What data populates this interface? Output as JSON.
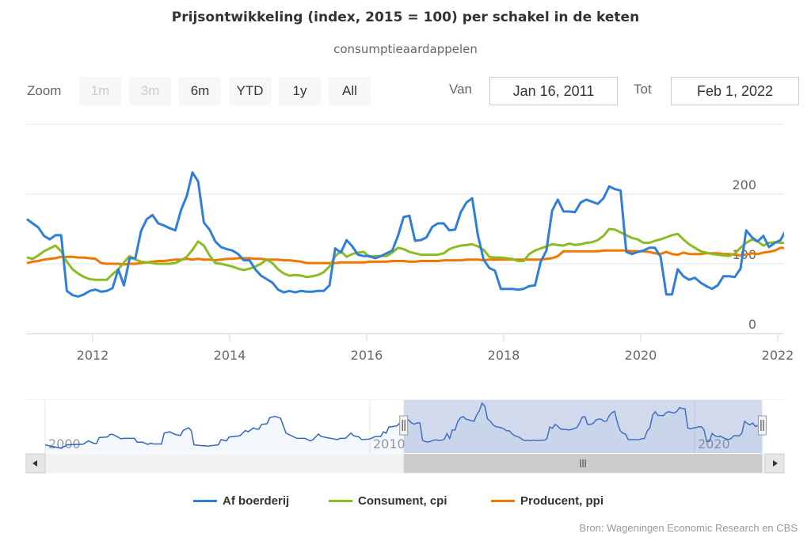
{
  "chart_data": {
    "type": "line",
    "title": "Prijsontwikkeling (index, 2015 = 100) per schakel in de keten",
    "subtitle": "consumptieaardappelen",
    "x_range": [
      "2011-01-16",
      "2022-02-01"
    ],
    "x_ticks": [
      "2012",
      "2014",
      "2016",
      "2018",
      "2020",
      "2022"
    ],
    "y_ticks": [
      "0",
      "100",
      "200"
    ],
    "ylim": [
      0,
      300
    ],
    "grid": true,
    "legend_placement": "bottom",
    "series_start": "2011-01",
    "series_frequency": "monthly",
    "series": [
      {
        "name": "Af boerderij",
        "color": "#2f7ed8",
        "values": [
          164,
          158,
          152,
          140,
          135,
          141,
          141,
          61,
          55,
          53,
          56,
          61,
          63,
          60,
          61,
          65,
          92,
          69,
          108,
          108,
          147,
          164,
          170,
          158,
          155,
          151,
          148,
          177,
          197,
          231,
          218,
          159,
          149,
          132,
          124,
          121,
          119,
          114,
          105,
          105,
          92,
          83,
          78,
          73,
          63,
          59,
          61,
          59,
          61,
          60,
          60,
          61,
          61,
          69,
          122,
          116,
          134,
          125,
          113,
          111,
          111,
          108,
          111,
          115,
          119,
          140,
          167,
          169,
          133,
          134,
          138,
          153,
          158,
          158,
          148,
          149,
          174,
          188,
          194,
          141,
          106,
          94,
          90,
          64,
          64,
          64,
          63,
          64,
          68,
          69,
          103,
          119,
          176,
          192,
          175,
          175,
          174,
          188,
          192,
          189,
          186,
          194,
          211,
          207,
          205,
          117,
          114,
          117,
          119,
          123,
          123,
          110,
          56,
          56,
          92,
          82,
          77,
          80,
          73,
          68,
          64,
          69,
          82,
          82,
          81,
          93,
          148,
          138,
          132,
          140,
          124,
          130,
          134,
          149
        ]
      },
      {
        "name": "Consument, cpi",
        "color": "#8bbc21",
        "values": [
          109,
          107,
          112,
          118,
          122,
          126,
          118,
          103,
          92,
          86,
          81,
          78,
          77,
          77,
          77,
          85,
          92,
          102,
          111,
          106,
          103,
          102,
          101,
          100,
          100,
          100,
          101,
          105,
          110,
          120,
          132,
          126,
          112,
          101,
          100,
          98,
          96,
          93,
          91,
          93,
          96,
          100,
          106,
          101,
          92,
          86,
          83,
          84,
          83,
          81,
          82,
          84,
          88,
          96,
          111,
          118,
          110,
          114,
          116,
          117,
          110,
          111,
          111,
          111,
          116,
          123,
          121,
          117,
          115,
          113,
          113,
          113,
          113,
          115,
          121,
          124,
          126,
          127,
          128,
          125,
          120,
          110,
          109,
          109,
          108,
          107,
          104,
          104,
          114,
          119,
          122,
          125,
          128,
          127,
          126,
          129,
          127,
          128,
          130,
          131,
          134,
          140,
          150,
          149,
          145,
          141,
          137,
          135,
          130,
          130,
          133,
          135,
          138,
          141,
          143,
          135,
          128,
          123,
          118,
          116,
          114,
          113,
          112,
          111,
          115,
          123,
          130,
          135,
          132,
          126,
          130,
          131,
          130,
          130
        ]
      },
      {
        "name": "Producent, ppi",
        "color": "#f07800",
        "values": [
          101,
          103,
          104,
          106,
          107,
          108,
          110,
          110,
          110,
          109,
          109,
          108,
          107,
          101,
          100,
          100,
          100,
          99,
          100,
          100,
          101,
          102,
          103,
          104,
          104,
          105,
          106,
          106,
          107,
          106,
          107,
          106,
          106,
          105,
          106,
          107,
          107,
          108,
          108,
          108,
          107,
          107,
          106,
          106,
          106,
          105,
          105,
          104,
          103,
          101,
          101,
          101,
          101,
          101,
          101,
          102,
          102,
          102,
          102,
          102,
          103,
          103,
          103,
          103,
          104,
          104,
          104,
          103,
          103,
          104,
          104,
          104,
          104,
          105,
          105,
          105,
          105,
          106,
          106,
          106,
          105,
          106,
          106,
          106,
          106,
          106,
          106,
          106,
          106,
          106,
          106,
          107,
          108,
          111,
          118,
          118,
          118,
          118,
          118,
          118,
          118,
          119,
          119,
          119,
          119,
          119,
          118,
          118,
          118,
          117,
          115,
          114,
          117,
          114,
          113,
          116,
          114,
          114,
          114,
          115,
          115,
          115,
          114,
          114,
          113,
          112,
          113,
          115,
          114,
          116,
          117,
          119,
          123,
          122
        ]
      }
    ],
    "navigator": {
      "series_name": "Af boerderij",
      "x_ticks": [
        "2000",
        "2010",
        "2020"
      ],
      "history_before_2011": [
        [
          "2000-01",
          40
        ],
        [
          "2000-07",
          24
        ],
        [
          "2000-09",
          40
        ],
        [
          "2001-03",
          43
        ],
        [
          "2001-05",
          58
        ],
        [
          "2001-07",
          47
        ],
        [
          "2001-08",
          47
        ],
        [
          "2001-09",
          74
        ],
        [
          "2001-12",
          76
        ],
        [
          "2002-01",
          88
        ],
        [
          "2002-02",
          88
        ],
        [
          "2002-05",
          68
        ],
        [
          "2002-06",
          70
        ],
        [
          "2002-10",
          70
        ],
        [
          "2002-11",
          52
        ],
        [
          "2003-01",
          52
        ],
        [
          "2003-03",
          42
        ],
        [
          "2003-04",
          48
        ],
        [
          "2003-05",
          44
        ],
        [
          "2003-08",
          44
        ],
        [
          "2003-09",
          94
        ],
        [
          "2003-11",
          100
        ],
        [
          "2004-01",
          88
        ],
        [
          "2004-03",
          83
        ],
        [
          "2004-04",
          106
        ],
        [
          "2004-06",
          118
        ],
        [
          "2004-07",
          106
        ],
        [
          "2004-08",
          40
        ],
        [
          "2005-01",
          34
        ],
        [
          "2005-05",
          40
        ],
        [
          "2005-06",
          64
        ],
        [
          "2005-08",
          58
        ],
        [
          "2005-09",
          76
        ],
        [
          "2006-01",
          82
        ],
        [
          "2006-03",
          106
        ],
        [
          "2006-04",
          100
        ],
        [
          "2006-06",
          118
        ],
        [
          "2006-07",
          112
        ],
        [
          "2006-08",
          112
        ],
        [
          "2006-09",
          134
        ],
        [
          "2006-11",
          137
        ],
        [
          "2006-12",
          165
        ],
        [
          "2007-02",
          171
        ],
        [
          "2007-04",
          162
        ],
        [
          "2007-06",
          94
        ],
        [
          "2007-10",
          70
        ],
        [
          "2008-01",
          70
        ],
        [
          "2008-03",
          58
        ],
        [
          "2008-04",
          64
        ],
        [
          "2008-06",
          90
        ],
        [
          "2008-07",
          78
        ],
        [
          "2009-01",
          64
        ],
        [
          "2009-02",
          70
        ],
        [
          "2009-04",
          70
        ],
        [
          "2009-06",
          94
        ],
        [
          "2009-07",
          82
        ],
        [
          "2009-09",
          76
        ],
        [
          "2009-10",
          64
        ],
        [
          "2010-01",
          67
        ],
        [
          "2010-03",
          78
        ],
        [
          "2010-05",
          78
        ],
        [
          "2010-06",
          100
        ],
        [
          "2010-07",
          94
        ],
        [
          "2010-08",
          122
        ],
        [
          "2010-11",
          127
        ],
        [
          "2010-12",
          140
        ]
      ],
      "selected_range": [
        "2011-01-16",
        "2022-02-01"
      ]
    }
  },
  "range_selector": {
    "zoom_label": "Zoom",
    "buttons": [
      {
        "label": "1m",
        "disabled": true
      },
      {
        "label": "3m",
        "disabled": true
      },
      {
        "label": "6m",
        "disabled": false
      },
      {
        "label": "YTD",
        "disabled": false
      },
      {
        "label": "1y",
        "disabled": false
      },
      {
        "label": "All",
        "disabled": false
      }
    ],
    "from_label": "Van",
    "from_value": "Jan 16, 2011",
    "to_label": "Tot",
    "to_value": "Feb 1, 2022"
  },
  "legend": [
    {
      "label": "Af boerderij",
      "color": "#2f7ed8"
    },
    {
      "label": "Consument, cpi",
      "color": "#8bbc21"
    },
    {
      "label": "Producent, ppi",
      "color": "#f07800"
    }
  ],
  "credits": "Bron: Wageningen Economic Research en CBS"
}
